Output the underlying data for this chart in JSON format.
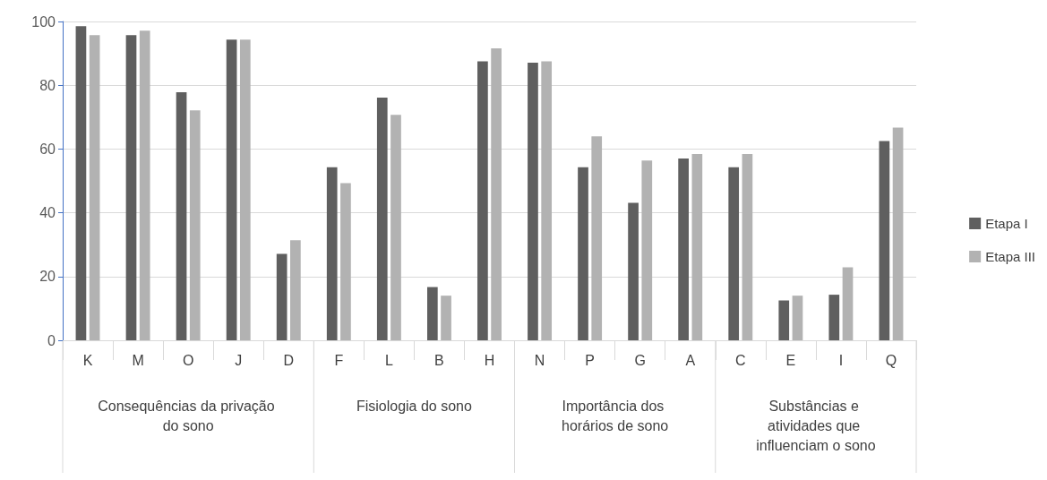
{
  "chart_data": {
    "type": "bar",
    "categories": [
      "K",
      "M",
      "O",
      "J",
      "D",
      "F",
      "L",
      "B",
      "H",
      "N",
      "P",
      "G",
      "A",
      "C",
      "E",
      "I",
      "Q"
    ],
    "series": [
      {
        "name": "Etapa I",
        "color": "#5f5f5f",
        "values": [
          98.5,
          95.7,
          77.8,
          94.3,
          27.1,
          54.3,
          76.1,
          16.7,
          87.5,
          87.1,
          54.3,
          43.1,
          57,
          54.3,
          12.5,
          14.3,
          62.5
        ]
      },
      {
        "name": "Etapa III",
        "color": "#b2b2b2",
        "values": [
          95.7,
          97.1,
          72.1,
          94.3,
          31.4,
          49.3,
          70.7,
          14,
          91.6,
          87.5,
          64,
          56.4,
          58.4,
          58.4,
          14,
          22.9,
          66.7
        ]
      }
    ],
    "annotations": [
      "Consequências da privação do sono",
      "Fisiologia do sono",
      "Importância dos horários de sono",
      "Substâncias e atividades que influenciam o sono"
    ],
    "ylim": [
      0,
      100
    ],
    "yticks": [
      0,
      20,
      40,
      60,
      80,
      100
    ],
    "grid": "y",
    "legend": "right"
  }
}
